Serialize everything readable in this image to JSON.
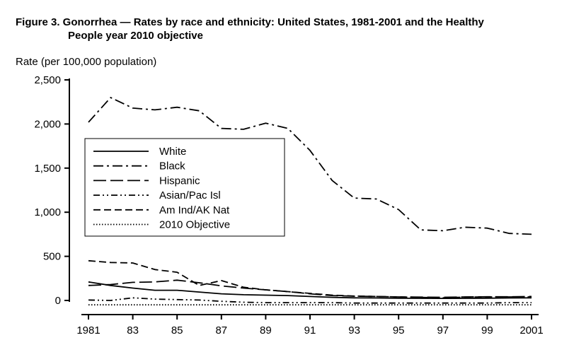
{
  "figure": {
    "title_line1": "Figure 3. Gonorrhea — Rates by race and ethnicity:  United States, 1981-2001 and the Healthy",
    "title_line2": "People year 2010 objective"
  },
  "chart_data": {
    "type": "line",
    "ylabel": "Rate (per 100,000 population)",
    "xlabel": "",
    "xlim": [
      1981,
      2001
    ],
    "ylim": [
      0,
      2500
    ],
    "x": [
      1981,
      1982,
      1983,
      1984,
      1985,
      1986,
      1987,
      1988,
      1989,
      1990,
      1991,
      1992,
      1993,
      1994,
      1995,
      1996,
      1997,
      1998,
      1999,
      2000,
      2001
    ],
    "x_ticks": [
      1981,
      1983,
      1985,
      1987,
      1989,
      1991,
      1993,
      1995,
      1997,
      1999,
      2001
    ],
    "x_tick_labels": [
      "1981",
      "83",
      "85",
      "87",
      "89",
      "91",
      "93",
      "95",
      "97",
      "99",
      "2001"
    ],
    "y_ticks": [
      0,
      500,
      1000,
      1500,
      2000,
      2500
    ],
    "y_tick_labels": [
      "0",
      "500",
      "1,000",
      "1,500",
      "2,000",
      "2,500"
    ],
    "legend_position": "upper-left",
    "grid": false,
    "series": [
      {
        "name": "White",
        "dash": "solid",
        "values": [
          210,
          170,
          140,
          115,
          115,
          95,
          75,
          65,
          60,
          55,
          45,
          35,
          30,
          28,
          25,
          24,
          23,
          24,
          26,
          28,
          30
        ]
      },
      {
        "name": "Black",
        "dash": "dash-dot",
        "values": [
          2020,
          2300,
          2180,
          2160,
          2190,
          2150,
          1950,
          1940,
          2010,
          1950,
          1700,
          1360,
          1160,
          1150,
          1030,
          800,
          790,
          830,
          820,
          760,
          750
        ]
      },
      {
        "name": "Hispanic",
        "dash": "long-dash",
        "values": [
          170,
          180,
          205,
          210,
          230,
          200,
          165,
          140,
          120,
          100,
          75,
          55,
          48,
          45,
          40,
          38,
          35,
          40,
          42,
          42,
          45
        ]
      },
      {
        "name": "Asian/Pac Isl",
        "dash": "dash-dot-dot",
        "values": [
          5,
          0,
          30,
          15,
          10,
          5,
          -10,
          -20,
          -25,
          -25,
          -25,
          -25,
          -30,
          -30,
          -30,
          -30,
          -30,
          -30,
          -30,
          -25,
          -25
        ]
      },
      {
        "name": "Am Ind/AK Nat",
        "dash": "medium-dash",
        "values": [
          450,
          430,
          425,
          350,
          320,
          170,
          225,
          150,
          120,
          100,
          80,
          60,
          50,
          45,
          40,
          35,
          30,
          38,
          40,
          40,
          40
        ]
      },
      {
        "name": "2010 Objective",
        "dash": "dotted",
        "values": [
          -50,
          -50,
          -50,
          -50,
          -50,
          -50,
          -50,
          -50,
          -50,
          -50,
          -50,
          -50,
          -50,
          -50,
          -50,
          -50,
          -50,
          -50,
          -50,
          -50,
          -50
        ]
      }
    ]
  },
  "colors": {
    "ink": "#000000",
    "background": "#ffffff"
  }
}
